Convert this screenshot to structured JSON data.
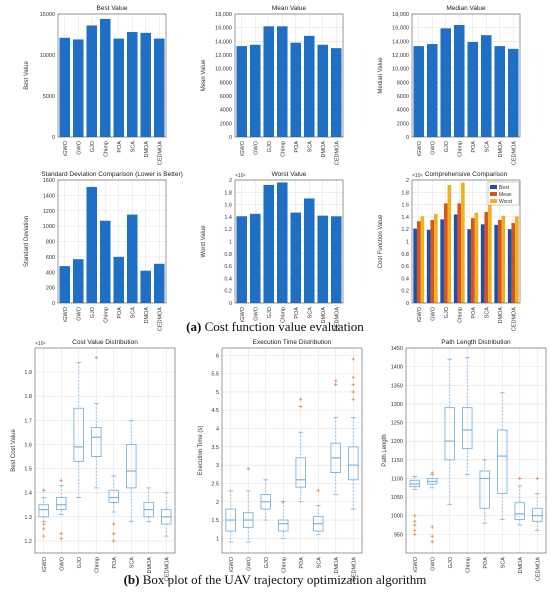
{
  "captions": {
    "a_label": "(a)",
    "a_text": "Cost function value evaluation",
    "b_label": "(b)",
    "b_text": "Box plot of the UAV trajectory optimization algorithm"
  },
  "colors": {
    "bar": "#1f6fc5",
    "best": "#1f4fa8",
    "mean": "#d9531e",
    "worst": "#edb120",
    "box": "#7fb2dc",
    "outlier": "#e8833a"
  },
  "chart_data": [
    {
      "type": "bar",
      "id": "best",
      "title": "Best Value",
      "ylabel": "Best Value",
      "xlabel": "",
      "categories": [
        "iGWO",
        "GWO",
        "GJO",
        "Chimp",
        "POA",
        "SCA",
        "DMOA",
        "CEDMOA"
      ],
      "values": [
        12100,
        11900,
        13600,
        14400,
        12000,
        12800,
        12700,
        12000
      ],
      "ylim": [
        0,
        15000
      ],
      "yticks": [
        0,
        5000,
        10000,
        15000
      ],
      "ytick_labels": [
        "0",
        "5000",
        "10000",
        "15000"
      ],
      "grid": true
    },
    {
      "type": "bar",
      "id": "mean",
      "title": "Mean Value",
      "ylabel": "Mean Value",
      "xlabel": "",
      "categories": [
        "iGWO",
        "GWO",
        "GJO",
        "Chimp",
        "POA",
        "SCA",
        "DMOA",
        "CEDMOA"
      ],
      "values": [
        13300,
        13500,
        16200,
        16200,
        13800,
        14800,
        13500,
        13000
      ],
      "ylim": [
        0,
        18000
      ],
      "yticks": [
        0,
        2000,
        4000,
        6000,
        8000,
        10000,
        12000,
        14000,
        16000,
        18000
      ],
      "ytick_labels": [
        "0",
        "2000",
        "4000",
        "6000",
        "8000",
        "10,000",
        "12,000",
        "14,000",
        "16,000",
        "18,000"
      ],
      "grid": true
    },
    {
      "type": "bar",
      "id": "median",
      "title": "Median Value",
      "ylabel": "Median Value",
      "xlabel": "",
      "categories": [
        "iGWO",
        "GWO",
        "GJO",
        "Chimp",
        "POA",
        "SCA",
        "DMOA",
        "CEDMOA"
      ],
      "values": [
        13300,
        13600,
        15900,
        16400,
        13900,
        14900,
        13300,
        12900
      ],
      "ylim": [
        0,
        18000
      ],
      "yticks": [
        0,
        2000,
        4000,
        6000,
        8000,
        10000,
        12000,
        14000,
        16000,
        18000
      ],
      "ytick_labels": [
        "0",
        "2000",
        "4000",
        "6000",
        "8000",
        "10,000",
        "12,000",
        "14,000",
        "16,000",
        "18,000"
      ],
      "grid": true
    },
    {
      "type": "bar",
      "id": "std",
      "title": "Standard Deviation Comparison (Lower is Better)",
      "ylabel": "Standard Deviation",
      "xlabel": "",
      "categories": [
        "iGWO",
        "GWO",
        "GJO",
        "Chimp",
        "POA",
        "SCA",
        "DMOA",
        "CEDMOA"
      ],
      "values": [
        480,
        570,
        1510,
        1070,
        600,
        1150,
        420,
        510
      ],
      "ylim": [
        0,
        1600
      ],
      "yticks": [
        0,
        200,
        400,
        600,
        800,
        1000,
        1200,
        1400,
        1600
      ],
      "ytick_labels": [
        "0",
        "200",
        "400",
        "600",
        "800",
        "1000",
        "1200",
        "1400",
        "1600"
      ],
      "grid": true
    },
    {
      "type": "bar",
      "id": "worst",
      "title": "Worst Value",
      "ylabel": "Worst Value",
      "xlabel": "",
      "multiplier": "×10⁴",
      "categories": [
        "iGWO",
        "GWO",
        "GJO",
        "Chimp",
        "POA",
        "SCA",
        "DMOA",
        "CEDMOA"
      ],
      "values": [
        1.41,
        1.45,
        1.92,
        1.96,
        1.47,
        1.7,
        1.42,
        1.41
      ],
      "ylim": [
        0,
        2
      ],
      "yticks": [
        0,
        0.2,
        0.4,
        0.6,
        0.8,
        1,
        1.2,
        1.4,
        1.6,
        1.8,
        2
      ],
      "ytick_labels": [
        "0",
        "0.2",
        "0.4",
        "0.6",
        "0.8",
        "1",
        "1.2",
        "1.4",
        "1.6",
        "1.8",
        "2"
      ],
      "grid": true
    },
    {
      "type": "bar",
      "id": "comprehensive",
      "title": "Comprehensive Comparison",
      "ylabel": "Cost Function Value",
      "xlabel": "",
      "multiplier": "×10⁴",
      "categories": [
        "iGWO",
        "GWO",
        "GJO",
        "Chimp",
        "POA",
        "SCA",
        "DMOA",
        "CEDMOA"
      ],
      "series": [
        {
          "name": "Best",
          "values": [
            1.21,
            1.19,
            1.36,
            1.44,
            1.2,
            1.28,
            1.27,
            1.2
          ]
        },
        {
          "name": "Mean",
          "values": [
            1.33,
            1.35,
            1.62,
            1.62,
            1.38,
            1.48,
            1.35,
            1.3
          ]
        },
        {
          "name": "Worst",
          "values": [
            1.41,
            1.45,
            1.92,
            1.96,
            1.47,
            1.7,
            1.42,
            1.41
          ]
        }
      ],
      "ylim": [
        0,
        2
      ],
      "yticks": [
        0,
        0.2,
        0.4,
        0.6,
        0.8,
        1,
        1.2,
        1.4,
        1.6,
        1.8,
        2
      ],
      "ytick_labels": [
        "0",
        "0.2",
        "0.4",
        "0.6",
        "0.8",
        "1",
        "1.2",
        "1.4",
        "1.6",
        "1.8",
        "2"
      ],
      "legend": "top-right",
      "grid": true
    },
    {
      "type": "box",
      "id": "costdist",
      "title": "Cost Value Distribution",
      "ylabel": "Best Cost Value",
      "xlabel": "",
      "multiplier": "×10⁴",
      "categories": [
        "iGWO",
        "GWO",
        "GJO",
        "Chimp",
        "POA",
        "SCA",
        "DMOA",
        "CEDMOA"
      ],
      "boxes": [
        {
          "min": 1.28,
          "q1": 1.3,
          "median": 1.33,
          "q3": 1.35,
          "max": 1.38,
          "outliers": [
            1.41,
            1.27,
            1.25,
            1.22
          ]
        },
        {
          "min": 1.31,
          "q1": 1.33,
          "median": 1.35,
          "q3": 1.38,
          "max": 1.43,
          "outliers": [
            1.45,
            1.23,
            1.21
          ]
        },
        {
          "min": 1.38,
          "q1": 1.53,
          "median": 1.59,
          "q3": 1.75,
          "max": 1.94,
          "outliers": []
        },
        {
          "min": 1.42,
          "q1": 1.55,
          "median": 1.63,
          "q3": 1.67,
          "max": 1.77,
          "outliers": [
            1.96
          ]
        },
        {
          "min": 1.32,
          "q1": 1.36,
          "median": 1.38,
          "q3": 1.41,
          "max": 1.47,
          "outliers": [
            1.27,
            1.23,
            1.2
          ]
        },
        {
          "min": 1.28,
          "q1": 1.42,
          "median": 1.49,
          "q3": 1.6,
          "max": 1.7,
          "outliers": []
        },
        {
          "min": 1.28,
          "q1": 1.3,
          "median": 1.33,
          "q3": 1.36,
          "max": 1.42,
          "outliers": []
        },
        {
          "min": 1.22,
          "q1": 1.27,
          "median": 1.3,
          "q3": 1.33,
          "max": 1.4,
          "outliers": []
        }
      ],
      "ylim": [
        1.15,
        2.0
      ],
      "yticks": [
        1.2,
        1.3,
        1.4,
        1.5,
        1.6,
        1.7,
        1.8,
        1.9
      ],
      "ytick_labels": [
        "1.2",
        "1.3",
        "1.4",
        "1.5",
        "1.6",
        "1.7",
        "1.8",
        "1.9"
      ],
      "grid": true
    },
    {
      "type": "box",
      "id": "timedist",
      "title": "Execution Time Distribution",
      "ylabel": "Execution Time (s)",
      "xlabel": "",
      "categories": [
        "iGWO",
        "GWO",
        "GJO",
        "Chimp",
        "POA",
        "SCA",
        "DMOA",
        "CEDMOA"
      ],
      "boxes": [
        {
          "min": 0.9,
          "q1": 1.2,
          "median": 1.5,
          "q3": 1.8,
          "max": 2.3,
          "outliers": []
        },
        {
          "min": 0.9,
          "q1": 1.3,
          "median": 1.5,
          "q3": 1.7,
          "max": 2.3,
          "outliers": [
            2.9
          ]
        },
        {
          "min": 1.5,
          "q1": 1.8,
          "median": 2.0,
          "q3": 2.2,
          "max": 2.6,
          "outliers": []
        },
        {
          "min": 1.0,
          "q1": 1.2,
          "median": 1.4,
          "q3": 1.5,
          "max": 2.0,
          "outliers": [
            2.0
          ]
        },
        {
          "min": 2.0,
          "q1": 2.4,
          "median": 2.6,
          "q3": 3.2,
          "max": 3.9,
          "outliers": [
            4.6,
            4.8
          ]
        },
        {
          "min": 1.1,
          "q1": 1.2,
          "median": 1.4,
          "q3": 1.6,
          "max": 1.9,
          "outliers": [
            2.3
          ]
        },
        {
          "min": 2.2,
          "q1": 2.8,
          "median": 3.2,
          "q3": 3.6,
          "max": 4.3,
          "outliers": [
            5.2,
            5.3
          ]
        },
        {
          "min": 1.8,
          "q1": 2.6,
          "median": 3.0,
          "q3": 3.5,
          "max": 4.3,
          "outliers": [
            4.8,
            5.0,
            5.2,
            5.4,
            5.9
          ]
        }
      ],
      "ylim": [
        0.6,
        6.2
      ],
      "yticks": [
        1,
        1.5,
        2,
        2.5,
        3,
        3.5,
        4,
        4.5,
        5,
        5.5,
        6
      ],
      "ytick_labels": [
        "1",
        "1.5",
        "2",
        "2.5",
        "3",
        "3.5",
        "4",
        "4.5",
        "5",
        "5.5",
        "6"
      ],
      "grid": true
    },
    {
      "type": "box",
      "id": "lengthdist",
      "title": "Path Length Distribution",
      "ylabel": "Path Length",
      "xlabel": "",
      "categories": [
        "iGWO",
        "GWO",
        "GJO",
        "Chimp",
        "POA",
        "SCA",
        "DMOA",
        "CEDMOA"
      ],
      "boxes": [
        {
          "min": 1070,
          "q1": 1078,
          "median": 1085,
          "q3": 1095,
          "max": 1105,
          "outliers": [
            1000,
            985,
            975,
            960,
            950
          ]
        },
        {
          "min": 1075,
          "q1": 1085,
          "median": 1092,
          "q3": 1100,
          "max": 1110,
          "outliers": [
            1115,
            970,
            945,
            930
          ]
        },
        {
          "min": 1030,
          "q1": 1150,
          "median": 1200,
          "q3": 1290,
          "max": 1420,
          "outliers": []
        },
        {
          "min": 1110,
          "q1": 1180,
          "median": 1230,
          "q3": 1290,
          "max": 1425,
          "outliers": []
        },
        {
          "min": 980,
          "q1": 1020,
          "median": 1100,
          "q3": 1120,
          "max": 1150,
          "outliers": []
        },
        {
          "min": 990,
          "q1": 1060,
          "median": 1160,
          "q3": 1230,
          "max": 1330,
          "outliers": []
        },
        {
          "min": 975,
          "q1": 990,
          "median": 1005,
          "q3": 1035,
          "max": 1080,
          "outliers": [
            1100
          ]
        },
        {
          "min": 960,
          "q1": 985,
          "median": 1000,
          "q3": 1020,
          "max": 1060,
          "outliers": [
            1100
          ]
        }
      ],
      "ylim": [
        900,
        1450
      ],
      "yticks": [
        950,
        1000,
        1050,
        1100,
        1150,
        1200,
        1250,
        1300,
        1350,
        1400,
        1450
      ],
      "ytick_labels": [
        "950",
        "1000",
        "1050",
        "1100",
        "1150",
        "1200",
        "1250",
        "1300",
        "1350",
        "1400",
        "1450"
      ],
      "grid": true
    }
  ]
}
